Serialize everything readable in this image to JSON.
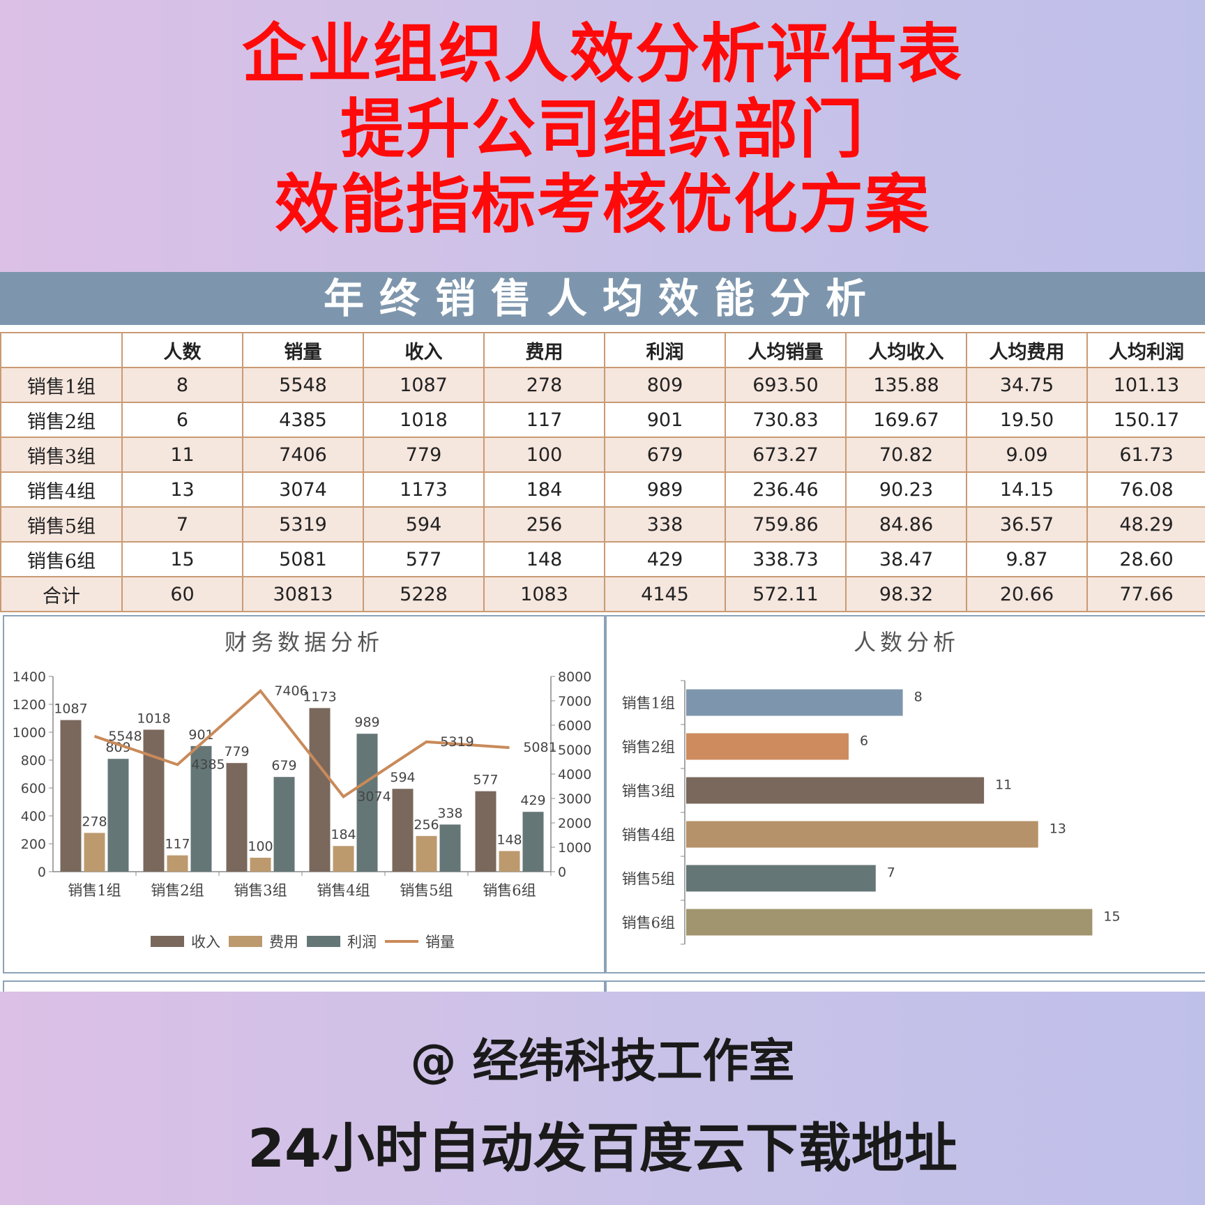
{
  "headline": [
    "企业组织人效分析评估表",
    "提升公司组织部门",
    "效能指标考核优化方案"
  ],
  "sheet_title": "年终销售人均效能分析",
  "table": {
    "headers": [
      "",
      "人数",
      "销量",
      "收入",
      "费用",
      "利润",
      "人均销量",
      "人均收入",
      "人均费用",
      "人均利润"
    ],
    "rows": [
      [
        "销售1组",
        "8",
        "5548",
        "1087",
        "278",
        "809",
        "693.50",
        "135.88",
        "34.75",
        "101.13"
      ],
      [
        "销售2组",
        "6",
        "4385",
        "1018",
        "117",
        "901",
        "730.83",
        "169.67",
        "19.50",
        "150.17"
      ],
      [
        "销售3组",
        "11",
        "7406",
        "779",
        "100",
        "679",
        "673.27",
        "70.82",
        "9.09",
        "61.73"
      ],
      [
        "销售4组",
        "13",
        "3074",
        "1173",
        "184",
        "989",
        "236.46",
        "90.23",
        "14.15",
        "76.08"
      ],
      [
        "销售5组",
        "7",
        "5319",
        "594",
        "256",
        "338",
        "759.86",
        "84.86",
        "36.57",
        "48.29"
      ],
      [
        "销售6组",
        "15",
        "5081",
        "577",
        "148",
        "429",
        "338.73",
        "38.47",
        "9.87",
        "28.60"
      ],
      [
        "合计",
        "60",
        "30813",
        "5228",
        "1083",
        "4145",
        "572.11",
        "98.32",
        "20.66",
        "77.66"
      ]
    ]
  },
  "chart_data": [
    {
      "type": "bar",
      "title": "财务数据分析",
      "categories": [
        "销售1组",
        "销售2组",
        "销售3组",
        "销售4组",
        "销售5组",
        "销售6组"
      ],
      "series": [
        {
          "name": "收入",
          "type": "bar",
          "axis": "left",
          "color": "#7a685c",
          "values": [
            1087,
            1018,
            779,
            1173,
            594,
            577
          ]
        },
        {
          "name": "费用",
          "type": "bar",
          "axis": "left",
          "color": "#bc9a6e",
          "values": [
            278,
            117,
            100,
            184,
            256,
            148
          ]
        },
        {
          "name": "利润",
          "type": "bar",
          "axis": "left",
          "color": "#657676",
          "values": [
            809,
            901,
            679,
            989,
            338,
            429
          ]
        },
        {
          "name": "销量",
          "type": "line",
          "axis": "right",
          "color": "#c98a5a",
          "values": [
            5548,
            4385,
            7406,
            3074,
            5319,
            5081
          ]
        }
      ],
      "ylim": [
        0,
        1400
      ],
      "yticks": [
        "0",
        "200",
        "400",
        "600",
        "800",
        "1000",
        "1200",
        "1400"
      ],
      "y2lim": [
        0,
        8000
      ],
      "y2ticks": [
        "0",
        "1000",
        "2000",
        "3000",
        "4000",
        "5000",
        "6000",
        "7000",
        "8000"
      ],
      "legend": "bottom",
      "grid": false
    },
    {
      "type": "bar",
      "orientation": "horizontal",
      "title": "人数分析",
      "categories": [
        "销售1组",
        "销售2组",
        "销售3组",
        "销售4组",
        "销售5组",
        "销售6组"
      ],
      "values": [
        8,
        6,
        11,
        13,
        7,
        15
      ],
      "colors": [
        "#7e96ad",
        "#cd8b5e",
        "#7a685c",
        "#b6926a",
        "#657676",
        "#a0956e"
      ],
      "xlim": [
        0,
        16
      ],
      "legend": "none",
      "grid": false
    }
  ],
  "footer": {
    "studio": "@ 经纬科技工作室",
    "note": "24小时自动发百度云下载地址"
  }
}
